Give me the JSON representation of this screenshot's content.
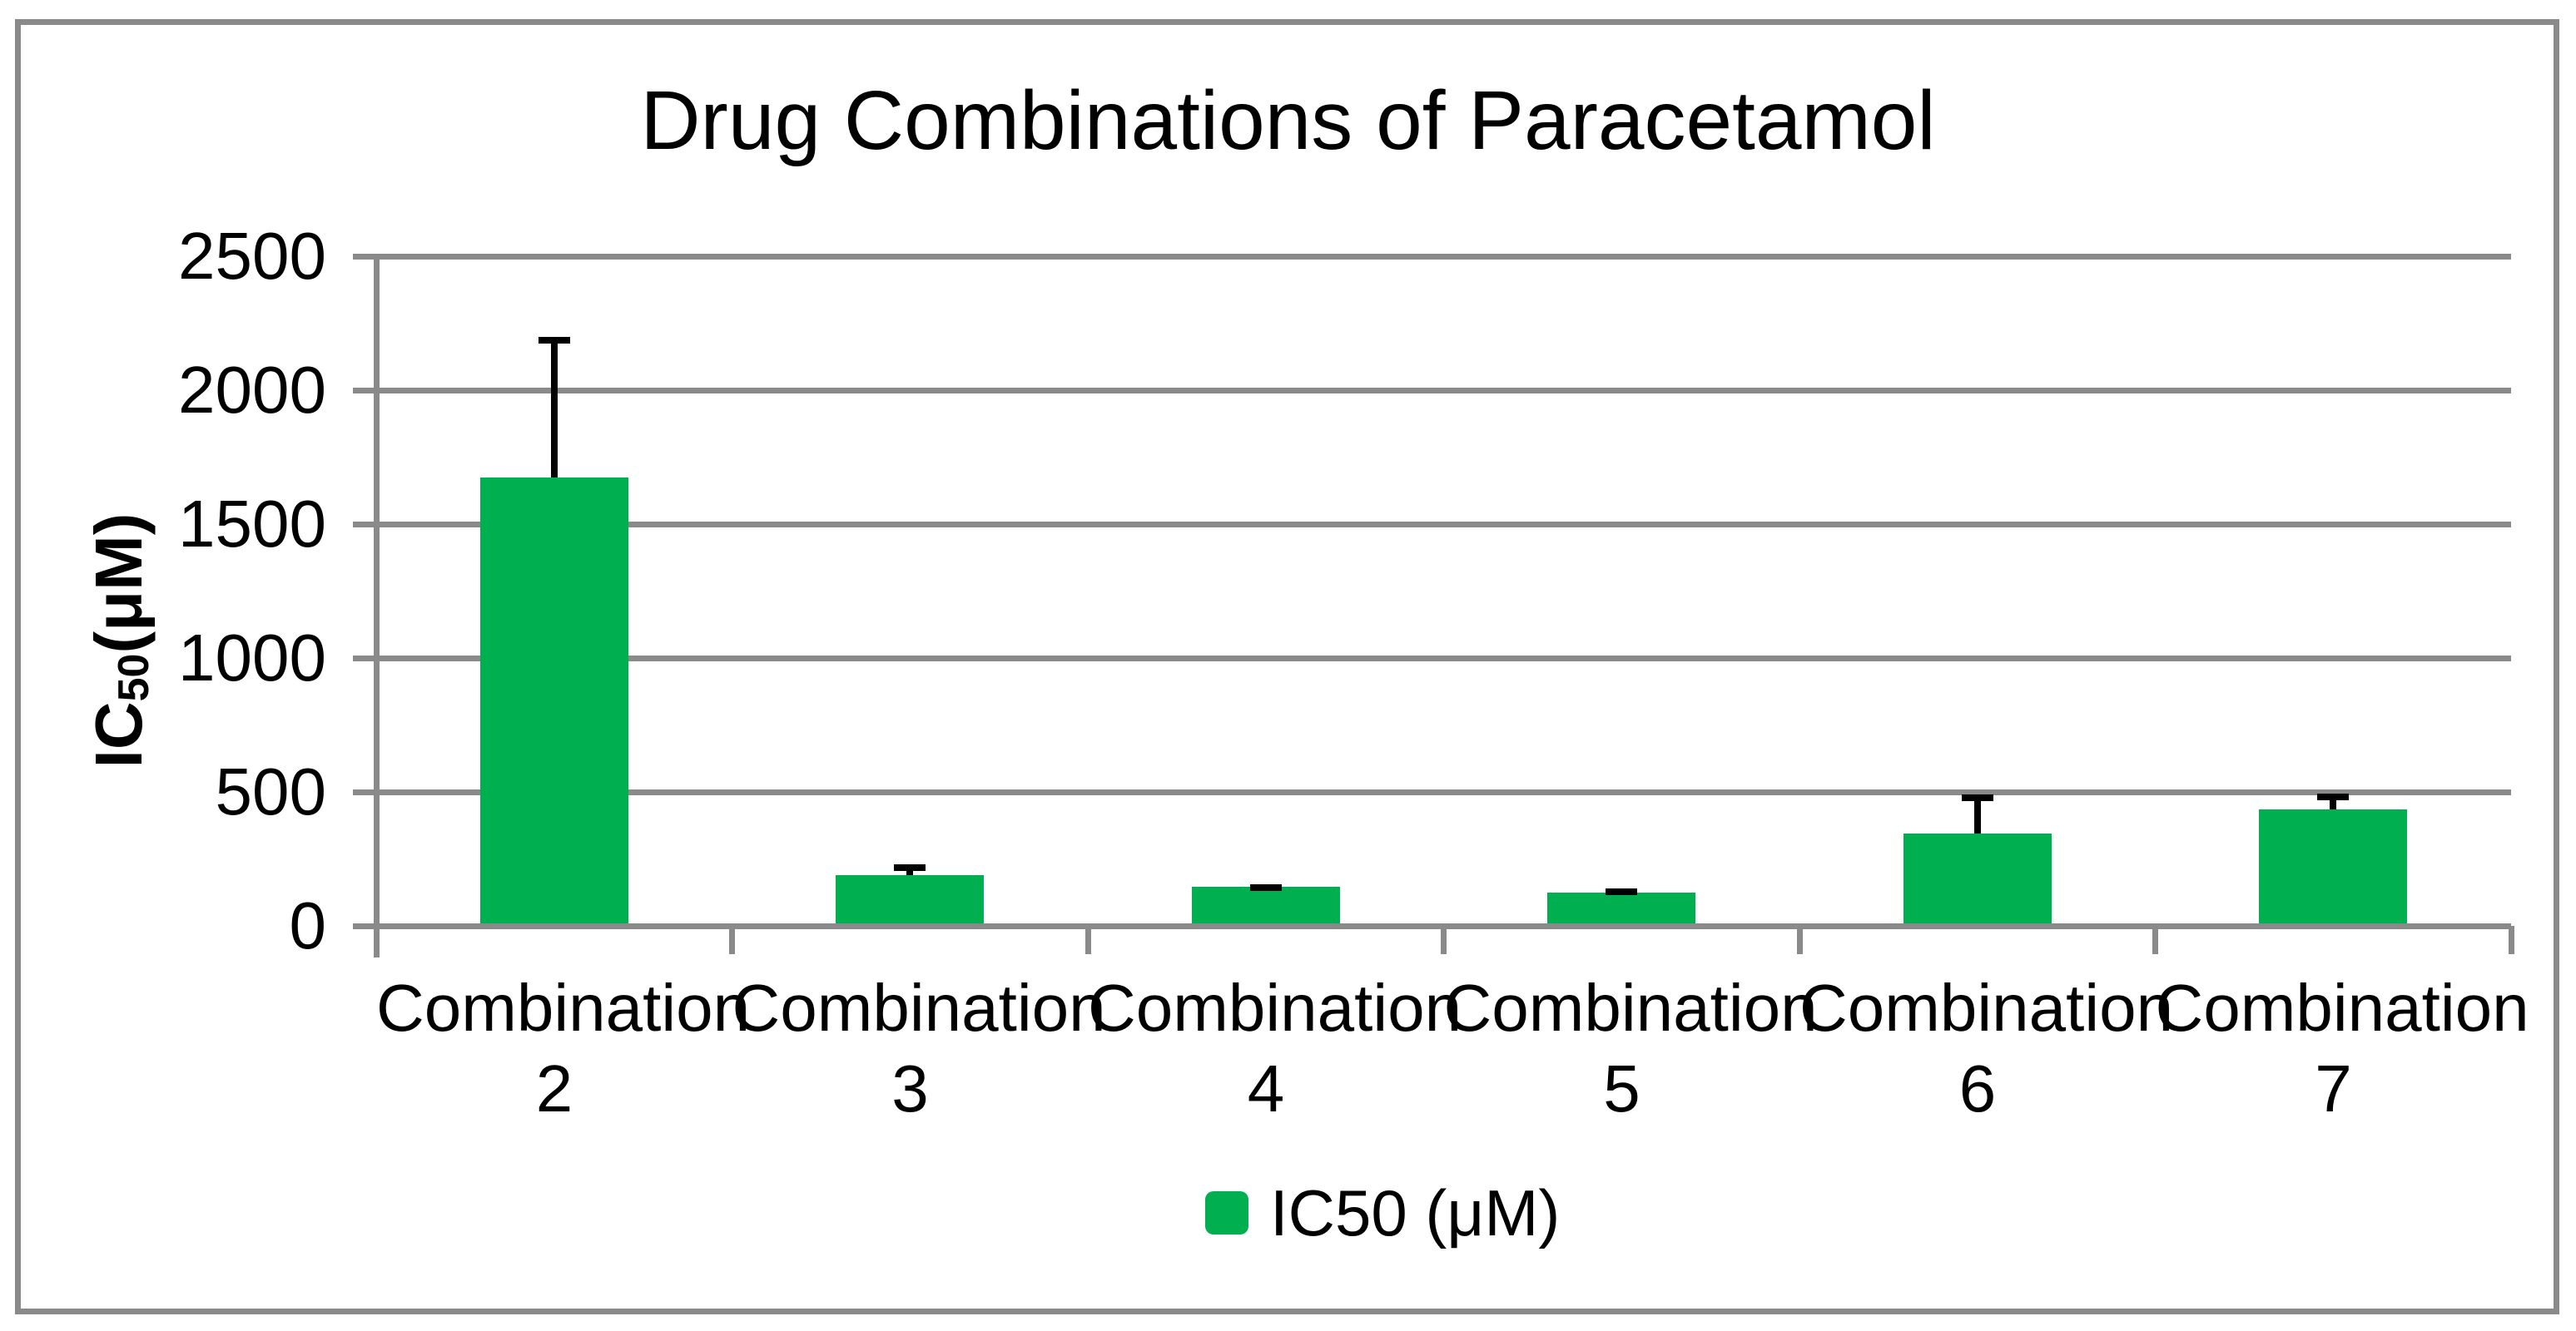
{
  "title": "Drug Combinations of Paracetamol",
  "chart_data": {
    "type": "bar",
    "title": "Drug Combinations of Paracetamol",
    "categories": [
      "Combination 2",
      "Combination 3",
      "Combination 4",
      "Combination 5",
      "Combination 6",
      "Combination 7"
    ],
    "series": [
      {
        "name": "IC50 (μM)",
        "values": [
          1675,
          190,
          145,
          125,
          345,
          435
        ],
        "errors_plus": [
          525,
          40,
          10,
          15,
          145,
          60
        ]
      }
    ],
    "xlabel": "",
    "ylabel": "IC50 (μM)",
    "ylabel_parts": {
      "prefix": "IC",
      "sub": "50",
      "suffix": " (μM)"
    },
    "yticks": [
      0,
      500,
      1000,
      1500,
      2000,
      2500
    ],
    "ylim": [
      0,
      2500
    ],
    "grid": true,
    "legend": {
      "label": "IC50 (μM)",
      "position": "bottom"
    },
    "colors": {
      "bar": "#00B050",
      "axis": "#8A8A8A",
      "error": "#000000",
      "text": "#000000",
      "background": "#FFFFFF"
    }
  }
}
